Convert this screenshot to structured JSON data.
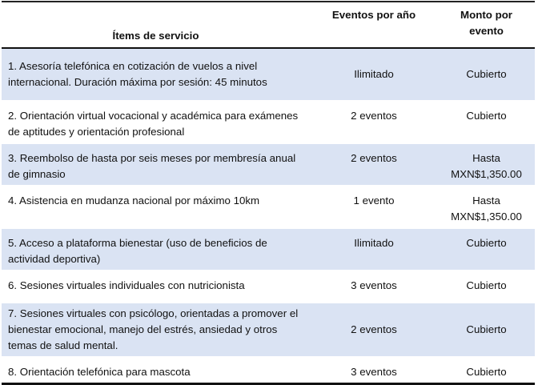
{
  "headers": [
    "Ítems de servicio",
    "Eventos por año",
    "Monto por evento"
  ],
  "rows": [
    {
      "item": "1. Asesoría telefónica en cotización de vuelos a nivel internacional. Duración máxima por sesión: 45 minutos",
      "events": "Ilimitado",
      "amount": "Cubierto"
    },
    {
      "item": "2. Orientación virtual vocacional y académica para exámenes de aptitudes y orientación profesional",
      "events": "2 eventos",
      "amount": "Cubierto"
    },
    {
      "item": "3. Reembolso de hasta por seis meses por membresía anual de gimnasio",
      "events": "2 eventos",
      "amount": "Hasta MXN$1,350.00"
    },
    {
      "item": "4. Asistencia en mudanza nacional por máximo 10km",
      "events": "1 evento",
      "amount": "Hasta MXN$1,350.00"
    },
    {
      "item": "5. Acceso a plataforma bienestar (uso de beneficios de actividad deportiva)",
      "events": "Ilimitado",
      "amount": "Cubierto"
    },
    {
      "item": "6. Sesiones virtuales individuales con nutricionista",
      "events": "3 eventos",
      "amount": "Cubierto"
    },
    {
      "item": "7. Sesiones virtuales con psicólogo, orientadas a promover el bienestar emocional, manejo del estrés, ansiedad y otros temas de salud mental.",
      "events": "2 eventos",
      "amount": "Cubierto"
    },
    {
      "item": "8. Orientación telefónica para mascota",
      "events": "3 eventos",
      "amount": "Cubierto"
    }
  ]
}
